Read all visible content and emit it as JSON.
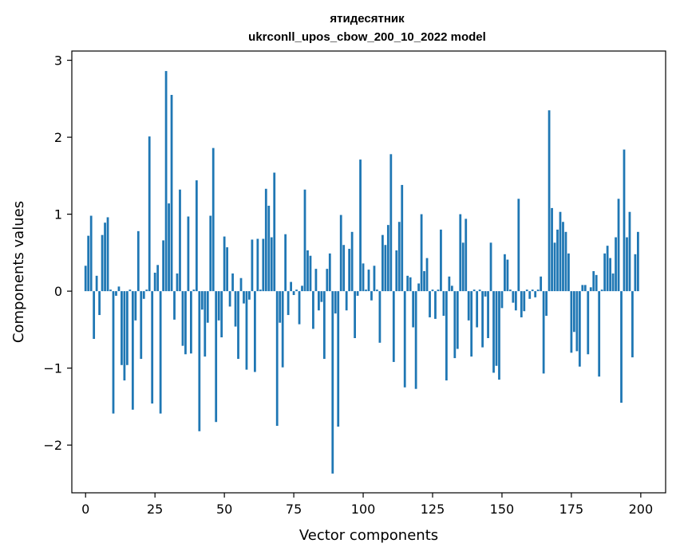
{
  "chart_data": {
    "type": "bar",
    "title_line1": "ятидесятник",
    "title_line2": "ukrconll_upos_cbow_200_10_2022 model",
    "xlabel": "Vector components",
    "ylabel": "Components values",
    "xlim": [
      -4.95,
      208.95
    ],
    "ylim": [
      -2.62,
      3.12
    ],
    "xticks": [
      0,
      25,
      50,
      75,
      100,
      125,
      150,
      175,
      200
    ],
    "yticks": [
      -2,
      -1,
      0,
      1,
      2,
      3
    ],
    "xtick_labels": [
      "0",
      "25",
      "50",
      "75",
      "100",
      "125",
      "150",
      "175",
      "200"
    ],
    "ytick_labels": [
      "−2",
      "−1",
      "0",
      "1",
      "2",
      "3"
    ],
    "bar_color": "#1f77b4",
    "grid": false,
    "x": [
      0,
      1,
      2,
      3,
      4,
      5,
      6,
      7,
      8,
      9,
      10,
      11,
      12,
      13,
      14,
      15,
      16,
      17,
      18,
      19,
      20,
      21,
      22,
      23,
      24,
      25,
      26,
      27,
      28,
      29,
      30,
      31,
      32,
      33,
      34,
      35,
      36,
      37,
      38,
      39,
      40,
      41,
      42,
      43,
      44,
      45,
      46,
      47,
      48,
      49,
      50,
      51,
      52,
      53,
      54,
      55,
      56,
      57,
      58,
      59,
      60,
      61,
      62,
      63,
      64,
      65,
      66,
      67,
      68,
      69,
      70,
      71,
      72,
      73,
      74,
      75,
      76,
      77,
      78,
      79,
      80,
      81,
      82,
      83,
      84,
      85,
      86,
      87,
      88,
      89,
      90,
      91,
      92,
      93,
      94,
      95,
      96,
      97,
      98,
      99,
      100,
      101,
      102,
      103,
      104,
      105,
      106,
      107,
      108,
      109,
      110,
      111,
      112,
      113,
      114,
      115,
      116,
      117,
      118,
      119,
      120,
      121,
      122,
      123,
      124,
      125,
      126,
      127,
      128,
      129,
      130,
      131,
      132,
      133,
      134,
      135,
      136,
      137,
      138,
      139,
      140,
      141,
      142,
      143,
      144,
      145,
      146,
      147,
      148,
      149,
      150,
      151,
      152,
      153,
      154,
      155,
      156,
      157,
      158,
      159,
      160,
      161,
      162,
      163,
      164,
      165,
      166,
      167,
      168,
      169,
      170,
      171,
      172,
      173,
      174,
      175,
      176,
      177,
      178,
      179,
      180,
      181,
      182,
      183,
      184,
      185,
      186,
      187,
      188,
      189,
      190,
      191,
      192,
      193,
      194,
      195,
      196,
      197,
      198,
      199
    ],
    "values": [
      0.33,
      0.72,
      0.98,
      -0.62,
      0.2,
      -0.31,
      0.73,
      0.89,
      0.96,
      0.02,
      -1.59,
      -0.06,
      0.06,
      -0.96,
      -1.16,
      -0.96,
      0.02,
      -1.54,
      -0.38,
      0.78,
      -0.88,
      -0.1,
      0.02,
      2.01,
      -1.46,
      0.24,
      0.34,
      -1.59,
      0.66,
      2.86,
      1.14,
      2.55,
      -0.37,
      0.23,
      1.32,
      -0.71,
      -0.82,
      0.97,
      -0.81,
      0.02,
      1.44,
      -1.82,
      -0.24,
      -0.85,
      -0.41,
      0.98,
      1.86,
      -1.7,
      -0.38,
      -0.6,
      0.71,
      0.57,
      -0.2,
      0.23,
      -0.46,
      -0.88,
      0.17,
      -0.16,
      -1.02,
      -0.11,
      0.67,
      -1.05,
      0.68,
      0.02,
      0.68,
      1.33,
      1.11,
      0.7,
      1.54,
      -1.75,
      -0.41,
      -0.99,
      0.74,
      -0.31,
      0.12,
      -0.05,
      0.02,
      -0.43,
      0.07,
      1.32,
      0.53,
      0.46,
      -0.49,
      0.29,
      -0.25,
      -0.14,
      -0.88,
      0.29,
      0.49,
      -2.37,
      -0.29,
      -1.76,
      0.99,
      0.6,
      -0.25,
      0.55,
      0.77,
      -0.61,
      -0.06,
      1.71,
      0.36,
      0.02,
      0.28,
      -0.12,
      0.33,
      0.02,
      -0.67,
      0.73,
      0.6,
      0.86,
      1.78,
      -0.92,
      0.53,
      0.9,
      1.38,
      -1.25,
      0.2,
      0.18,
      -0.47,
      -1.27,
      0.1,
      1.0,
      0.26,
      0.43,
      -0.34,
      0.02,
      -0.36,
      0.02,
      0.8,
      -0.32,
      -1.16,
      0.19,
      0.07,
      -0.87,
      -0.75,
      1.0,
      0.63,
      0.94,
      -0.38,
      -0.85,
      0.02,
      -0.47,
      0.02,
      -0.73,
      -0.07,
      -0.61,
      0.63,
      -1.06,
      -0.97,
      -1.15,
      -0.22,
      0.48,
      0.41,
      0.02,
      -0.15,
      -0.25,
      1.2,
      -0.34,
      -0.26,
      0.02,
      -0.1,
      0.02,
      -0.08,
      0.02,
      0.19,
      -1.07,
      -0.32,
      2.35,
      1.08,
      0.63,
      0.8,
      1.03,
      0.9,
      0.77,
      0.49,
      -0.8,
      -0.53,
      -0.78,
      -0.98,
      0.08,
      0.08,
      -0.82,
      0.05,
      0.26,
      0.21,
      -1.11,
      0.02,
      0.49,
      0.59,
      0.43,
      0.23,
      0.7,
      1.2,
      -1.45,
      1.84,
      0.7,
      1.03,
      -0.86,
      0.48,
      0.77
    ]
  }
}
